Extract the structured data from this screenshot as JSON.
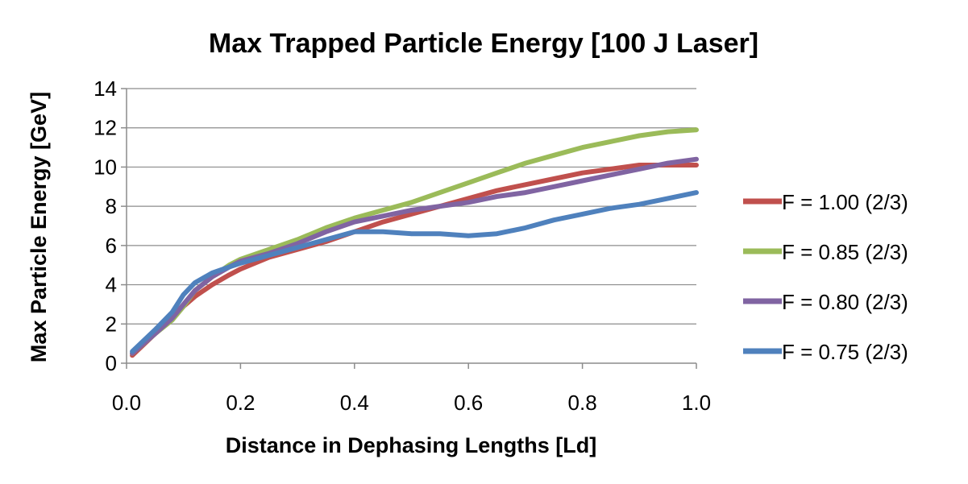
{
  "chart_data": {
    "type": "line",
    "title": "Max Trapped Particle Energy [100 J Laser]",
    "xlabel": "Distance in Dephasing Lengths [Ld]",
    "ylabel": "Max Particle Energy [GeV]",
    "xlim": [
      0.0,
      1.0
    ],
    "ylim": [
      0,
      14
    ],
    "xticks": [
      "0.0",
      "0.2",
      "0.4",
      "0.6",
      "0.8",
      "1.0"
    ],
    "yticks": [
      "0",
      "2",
      "4",
      "6",
      "8",
      "10",
      "12",
      "14"
    ],
    "grid": true,
    "legend_position": "right",
    "series": [
      {
        "name": "F = 1.00 (2/3)",
        "color": "#c0504d",
        "x": [
          0.01,
          0.05,
          0.08,
          0.1,
          0.12,
          0.15,
          0.18,
          0.2,
          0.25,
          0.3,
          0.35,
          0.4,
          0.45,
          0.5,
          0.55,
          0.6,
          0.65,
          0.7,
          0.75,
          0.8,
          0.85,
          0.9,
          0.95,
          1.0
        ],
        "values": [
          0.4,
          1.5,
          2.3,
          2.9,
          3.4,
          4.0,
          4.5,
          4.8,
          5.4,
          5.8,
          6.2,
          6.7,
          7.2,
          7.6,
          8.0,
          8.4,
          8.8,
          9.1,
          9.4,
          9.7,
          9.9,
          10.1,
          10.1,
          10.1
        ]
      },
      {
        "name": "F = 0.85 (2/3)",
        "color": "#9bbb59",
        "x": [
          0.01,
          0.05,
          0.08,
          0.1,
          0.12,
          0.15,
          0.18,
          0.2,
          0.25,
          0.3,
          0.35,
          0.4,
          0.45,
          0.5,
          0.55,
          0.6,
          0.65,
          0.7,
          0.75,
          0.8,
          0.85,
          0.9,
          0.95,
          1.0
        ],
        "values": [
          0.5,
          1.5,
          2.2,
          2.9,
          3.7,
          4.4,
          5.0,
          5.3,
          5.8,
          6.3,
          6.9,
          7.4,
          7.8,
          8.2,
          8.7,
          9.2,
          9.7,
          10.2,
          10.6,
          11.0,
          11.3,
          11.6,
          11.8,
          11.9
        ]
      },
      {
        "name": "F = 0.80 (2/3)",
        "color": "#8064a2",
        "x": [
          0.01,
          0.05,
          0.08,
          0.1,
          0.12,
          0.15,
          0.18,
          0.2,
          0.25,
          0.3,
          0.35,
          0.4,
          0.45,
          0.5,
          0.55,
          0.6,
          0.65,
          0.7,
          0.75,
          0.8,
          0.85,
          0.9,
          0.95,
          1.0
        ],
        "values": [
          0.5,
          1.5,
          2.3,
          3.0,
          3.7,
          4.4,
          4.9,
          5.2,
          5.6,
          6.1,
          6.7,
          7.2,
          7.5,
          7.8,
          8.0,
          8.2,
          8.5,
          8.7,
          9.0,
          9.3,
          9.6,
          9.9,
          10.2,
          10.4
        ]
      },
      {
        "name": "F = 0.75 (2/3)",
        "color": "#4f81bd",
        "x": [
          0.01,
          0.05,
          0.08,
          0.1,
          0.12,
          0.15,
          0.18,
          0.2,
          0.25,
          0.3,
          0.35,
          0.4,
          0.45,
          0.5,
          0.55,
          0.6,
          0.65,
          0.7,
          0.75,
          0.8,
          0.85,
          0.9,
          0.95,
          1.0
        ],
        "values": [
          0.6,
          1.7,
          2.6,
          3.5,
          4.1,
          4.6,
          4.9,
          5.1,
          5.5,
          5.9,
          6.3,
          6.7,
          6.7,
          6.6,
          6.6,
          6.5,
          6.6,
          6.9,
          7.3,
          7.6,
          7.9,
          8.1,
          8.4,
          8.7
        ]
      }
    ]
  }
}
